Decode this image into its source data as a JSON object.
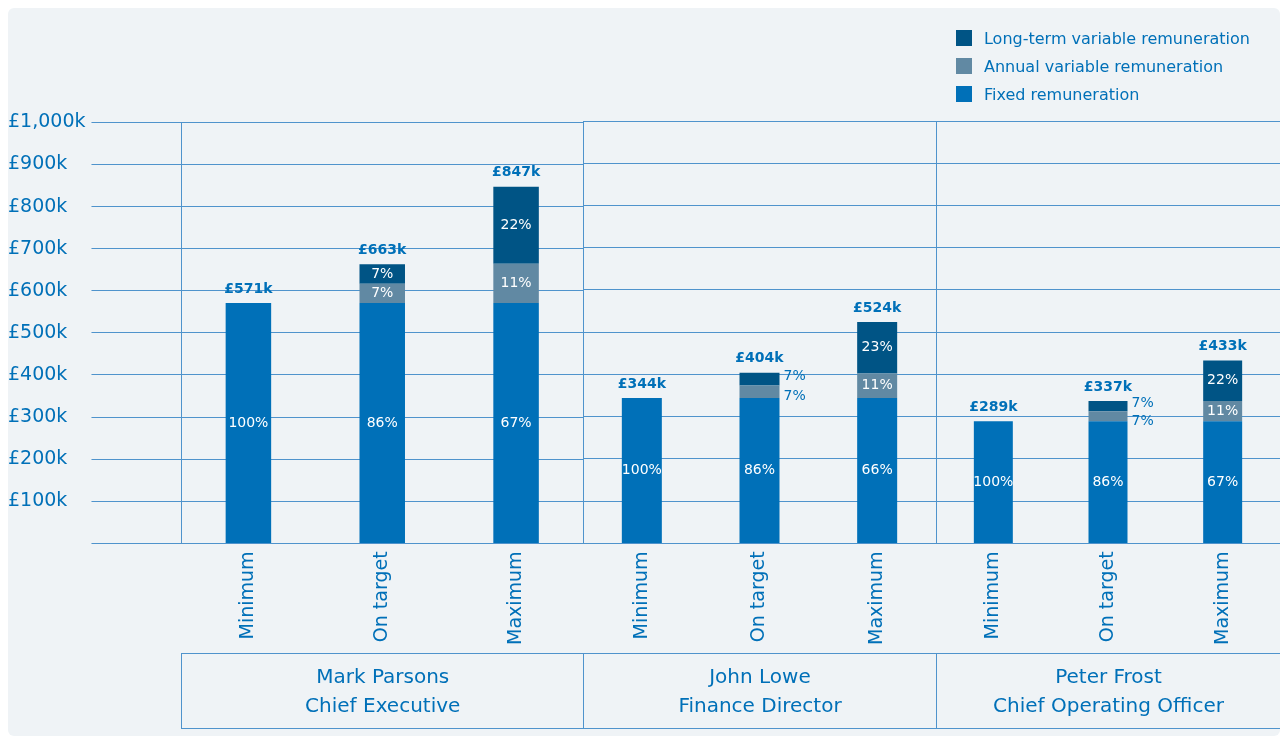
{
  "chart_data": [
    {
      "type": "bar",
      "stacked": true,
      "xlabel": "Mark Parsons\nChief Executive",
      "categories": [
        "Minimum",
        "On target",
        "Maximum"
      ],
      "series": [
        {
          "name": "Fixed remuneration",
          "color": "#0070b8",
          "values": [
            571,
            571,
            571
          ]
        },
        {
          "name": "Annual variable remuneration",
          "color": "#6189a3",
          "values": [
            0,
            46,
            93
          ]
        },
        {
          "name": "Long-term variable remuneration",
          "color": "#005485",
          "values": [
            0,
            46,
            183
          ]
        }
      ],
      "annotations": [
        "100%",
        "86%",
        "67%",
        "7%",
        "11%",
        "7%",
        "22%"
      ],
      "totals": [
        "£571k",
        "£663k",
        "£847k"
      ],
      "ylim": [
        0,
        1000
      ],
      "yticks": [
        {
          "value": 0,
          "label": null
        },
        {
          "value": 100,
          "label": "£100k"
        },
        {
          "value": 200,
          "label": "£200k"
        },
        {
          "value": 300,
          "label": "£300k"
        },
        {
          "value": 400,
          "label": "£400k"
        },
        {
          "value": 500,
          "label": "£500k"
        },
        {
          "value": 600,
          "label": "£600k"
        },
        {
          "value": 700,
          "label": "£700k"
        },
        {
          "value": 800,
          "label": "£800k"
        },
        {
          "value": 900,
          "label": "£900k"
        },
        {
          "value": 1000,
          "label": "£1,000k"
        }
      ],
      "grid": "y",
      "legend": "top right"
    },
    {
      "type": "bar",
      "stacked": true,
      "xlabel": "John Lowe\nFinance Director",
      "categories": [
        "Minimum",
        "On target",
        "Maximum"
      ],
      "series": [
        {
          "color": "#0070b8",
          "values": [
            344,
            344,
            344
          ]
        },
        {
          "color": "#6189a3",
          "values": [
            0,
            30,
            58
          ]
        },
        {
          "color": "#005485",
          "values": [
            0,
            30,
            122
          ]
        }
      ],
      "annotations": [
        "100%",
        "86%",
        "66%",
        "7%",
        "11%",
        "7%",
        "23%"
      ],
      "totals": [
        "£344k",
        "£404k",
        "£524k"
      ],
      "ylim": [
        0,
        1000
      ],
      "yticks": [
        0,
        100,
        200,
        300,
        400,
        500,
        600,
        700,
        800,
        900,
        1000
      ],
      "tick_labels": "x",
      "grid": "y"
    },
    {
      "type": "bar",
      "stacked": true,
      "xlabel": "Peter Frost\nChief Operating Officer",
      "categories": [
        "Minimum",
        "On target",
        "Maximum"
      ],
      "series": [
        {
          "color": "#0070b8",
          "values": [
            289,
            289,
            289
          ]
        },
        {
          "color": "#6189a3",
          "values": [
            0,
            24,
            48
          ]
        },
        {
          "color": "#005485",
          "values": [
            0,
            24,
            96
          ]
        }
      ],
      "annotations": [
        "100%",
        "86%",
        "67%",
        "7%",
        "11%",
        "7%",
        "22%"
      ],
      "totals": [
        "£289k",
        "£337k",
        "£433k"
      ],
      "ylim": [
        0,
        1000
      ],
      "yticks": [
        0,
        100,
        200,
        300,
        400,
        500,
        600,
        700,
        800,
        900,
        1000
      ],
      "tick_labels": "x",
      "grid": "y"
    }
  ]
}
